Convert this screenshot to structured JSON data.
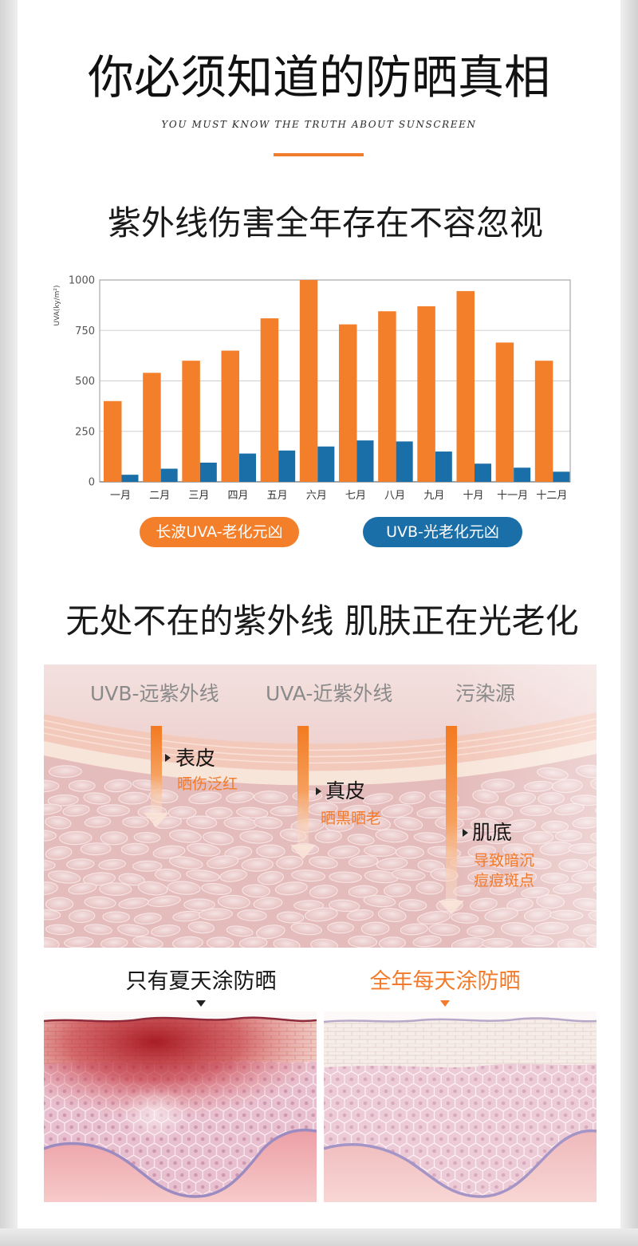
{
  "colors": {
    "accent": "#f07d2b",
    "effect_text": "#f27a2a",
    "source_text": "#8a8a8a"
  },
  "header": {
    "title": "你必须知道的防晒真相",
    "subtitle": "YOU MUST KNOW THE TRUTH ABOUT SUNSCREEN"
  },
  "section_uv": {
    "heading": "紫外线伤害全年存在不容忽视"
  },
  "chart_data": {
    "type": "bar",
    "categories": [
      "一月",
      "二月",
      "三月",
      "四月",
      "五月",
      "六月",
      "七月",
      "八月",
      "九月",
      "十月",
      "十一月",
      "十二月"
    ],
    "series": [
      {
        "name": "长波UVA-老化元凶",
        "color": "#f47f2a",
        "values": [
          400,
          540,
          600,
          650,
          810,
          1000,
          780,
          845,
          870,
          945,
          690,
          600
        ]
      },
      {
        "name": "UVB-光老化元凶",
        "color": "#1b6fa8",
        "values": [
          35,
          65,
          95,
          140,
          155,
          175,
          205,
          200,
          150,
          90,
          70,
          50
        ]
      }
    ],
    "xlabel": "",
    "ylabel": "UVA(ky/m²)",
    "ylim": [
      0,
      1000
    ],
    "yticks": [
      0,
      250,
      500,
      750,
      1000
    ],
    "grid": true,
    "legend_placement": "bottom"
  },
  "section_skin": {
    "heading": "无处不在的紫外线 肌肤正在光老化",
    "sources": [
      "UVB-远紫外线",
      "UVA-近紫外线",
      "污染源"
    ],
    "layers": [
      {
        "name": "表皮",
        "effects": [
          "晒伤泛红"
        ]
      },
      {
        "name": "真皮",
        "effects": [
          "晒黑晒老"
        ]
      },
      {
        "name": "肌底",
        "effects": [
          "导致暗沉",
          "痘痘斑点"
        ]
      }
    ]
  },
  "comparison": {
    "left": {
      "label": "只有夏天涂防晒"
    },
    "right": {
      "label": "全年每天涂防晒"
    }
  }
}
